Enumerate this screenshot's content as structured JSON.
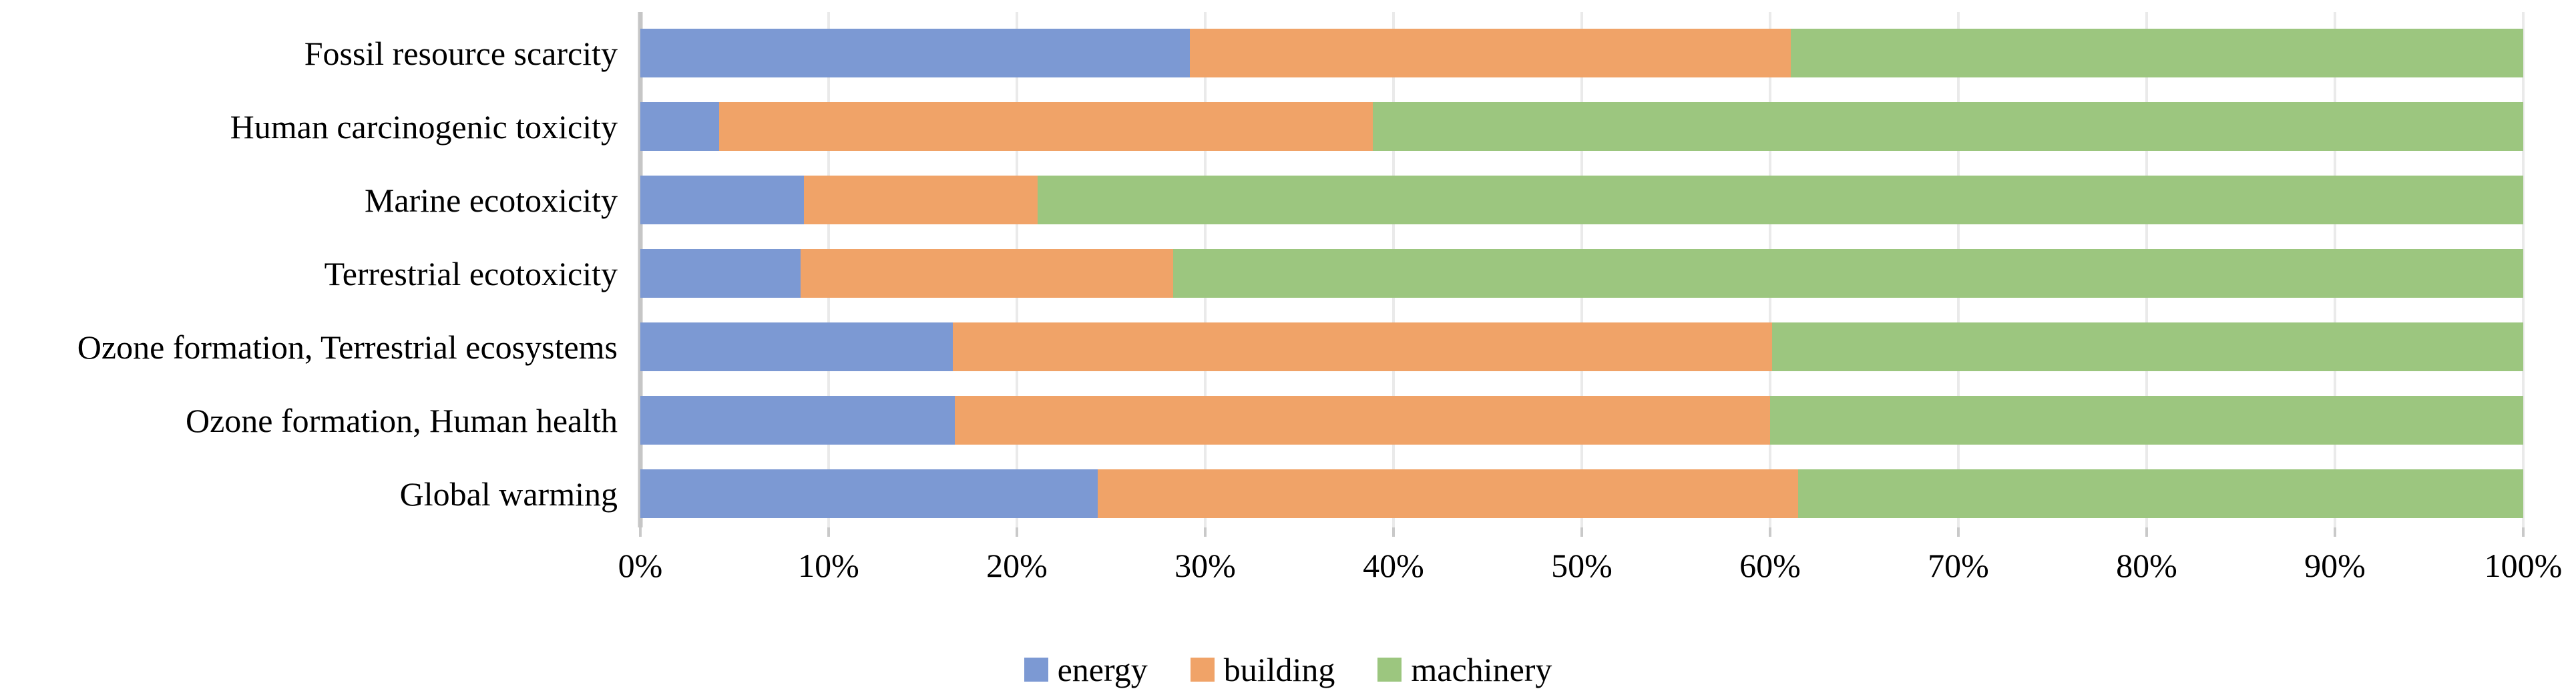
{
  "chart_data": {
    "type": "bar",
    "variant": "100%-stacked-horizontal",
    "title": "",
    "xlabel": "",
    "ylabel": "",
    "xlim": [
      0,
      100
    ],
    "grid": true,
    "legend_position": "bottom",
    "x_ticks": [
      "0%",
      "10%",
      "20%",
      "30%",
      "40%",
      "50%",
      "60%",
      "70%",
      "80%",
      "90%",
      "100%"
    ],
    "categories": [
      "Fossil resource scarcity",
      "Human carcinogenic toxicity",
      "Marine ecotoxicity",
      "Terrestrial ecotoxicity",
      "Ozone formation, Terrestrial ecosystems",
      "Ozone formation, Human health",
      "Global warming"
    ],
    "series": [
      {
        "name": "energy",
        "color": "#7C99D3",
        "values": [
          29.2,
          4.2,
          8.7,
          8.5,
          16.6,
          16.7,
          24.3
        ]
      },
      {
        "name": "building",
        "color": "#F0A368",
        "values": [
          31.9,
          34.7,
          12.4,
          19.8,
          43.5,
          43.3,
          37.2
        ]
      },
      {
        "name": "machinery",
        "color": "#9CC67F",
        "values": [
          38.9,
          61.1,
          78.9,
          71.7,
          39.9,
          40.0,
          38.5
        ]
      }
    ],
    "colors": {
      "gridline": "#EAEAEA",
      "axis_line": "#C6C6C6",
      "text": "#000000"
    }
  }
}
